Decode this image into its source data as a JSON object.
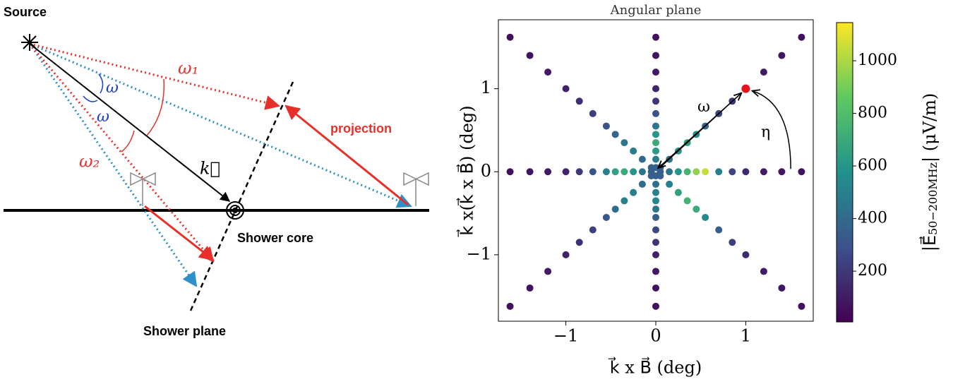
{
  "diagram": {
    "labels": {
      "source": "Source",
      "omega1": "ω₁",
      "omega_a": "ω",
      "omega_b": "ω",
      "omega2": "ω₂",
      "k": "k⃗",
      "projection": "projection",
      "shower_core": "Shower core",
      "shower_plane": "Shower plane"
    }
  },
  "chart_data": {
    "type": "scatter",
    "title": "Angular plane",
    "x_label": "k⃗ x B⃗ (deg)",
    "y_label": "k⃗ x(k⃗ x B⃗)  (deg)",
    "x": [
      0.05,
      0.15,
      0.25,
      0.35,
      0.45,
      0.55,
      0.7,
      0.85,
      1.0,
      1.2,
      1.4,
      1.62,
      0,
      0,
      0,
      0,
      0,
      0,
      0,
      0,
      0,
      0,
      0,
      0,
      -0.05,
      -0.15,
      -0.25,
      -0.35,
      -0.45,
      -0.55,
      -0.7,
      -0.85,
      -1.0,
      -1.2,
      -1.4,
      -1.62,
      0,
      0,
      0,
      0,
      0,
      0,
      0,
      0,
      0,
      0,
      0,
      0,
      0.05,
      0.15,
      0.25,
      0.35,
      0.45,
      0.55,
      0.7,
      0.85,
      1.0,
      1.2,
      1.4,
      1.62,
      -0.05,
      -0.15,
      -0.25,
      -0.35,
      -0.45,
      -0.55,
      -0.7,
      -0.85,
      -1.0,
      -1.2,
      -1.4,
      -1.62,
      -0.05,
      -0.15,
      -0.25,
      -0.35,
      -0.45,
      -0.55,
      -0.7,
      -0.85,
      -1.0,
      -1.2,
      -1.4,
      -1.62,
      0.05,
      0.15,
      0.25,
      0.35,
      0.45,
      0.55,
      0.7,
      0.85,
      1.0,
      1.2,
      1.4,
      1.62
    ],
    "y": [
      0,
      0,
      0,
      0,
      0,
      0,
      0,
      0,
      0,
      0,
      0,
      0,
      0.05,
      0.15,
      0.25,
      0.35,
      0.45,
      0.55,
      0.7,
      0.85,
      1.0,
      1.2,
      1.4,
      1.62,
      0,
      0,
      0,
      0,
      0,
      0,
      0,
      0,
      0,
      0,
      0,
      0,
      -0.05,
      -0.15,
      -0.25,
      -0.35,
      -0.45,
      -0.55,
      -0.7,
      -0.85,
      -1.0,
      -1.2,
      -1.4,
      -1.62,
      0.05,
      0.15,
      0.25,
      0.35,
      0.45,
      0.55,
      0.7,
      0.85,
      1.0,
      1.2,
      1.4,
      1.62,
      0.05,
      0.15,
      0.25,
      0.35,
      0.45,
      0.55,
      0.7,
      0.85,
      1.0,
      1.2,
      1.4,
      1.62,
      -0.05,
      -0.15,
      -0.25,
      -0.35,
      -0.45,
      -0.55,
      -0.7,
      -0.85,
      -1.0,
      -1.2,
      -1.4,
      -1.62,
      -0.05,
      -0.15,
      -0.25,
      -0.35,
      -0.45,
      -0.55,
      -0.7,
      -0.85,
      -1.0,
      -1.2,
      -1.4,
      -1.62
    ],
    "values": [
      350,
      450,
      600,
      750,
      950,
      1050,
      500,
      250,
      150,
      100,
      80,
      60,
      350,
      480,
      620,
      700,
      600,
      450,
      300,
      200,
      130,
      90,
      70,
      60,
      350,
      450,
      600,
      700,
      650,
      500,
      300,
      200,
      130,
      90,
      70,
      60,
      350,
      420,
      500,
      520,
      450,
      350,
      250,
      180,
      120,
      90,
      70,
      60,
      350,
      450,
      600,
      650,
      550,
      400,
      250,
      180,
      130,
      100,
      80,
      60,
      350,
      400,
      480,
      450,
      380,
      300,
      220,
      160,
      120,
      90,
      70,
      60,
      350,
      420,
      500,
      500,
      420,
      320,
      230,
      170,
      120,
      90,
      70,
      60,
      350,
      500,
      650,
      750,
      700,
      550,
      350,
      220,
      150,
      100,
      80,
      60
    ],
    "highlight": {
      "x": 1,
      "y": 1,
      "color": "#e8141c"
    },
    "annotations": [
      "ω",
      "η"
    ],
    "xlim": [
      -1.75,
      1.75
    ],
    "ylim": [
      -1.8,
      1.83
    ],
    "xticks": [
      {
        "value": -1,
        "label": "−1"
      },
      0,
      1
    ],
    "yticks": [
      {
        "value": -1,
        "label": "−1"
      },
      0,
      1
    ],
    "colorbar": {
      "label": [
        "|E⃗",
        "50−200MHz",
        "| (μV/m)"
      ],
      "clim": [
        7,
        1145
      ],
      "ticks": [
        200,
        400,
        600,
        800,
        1000
      ],
      "colormap": "viridis"
    }
  }
}
